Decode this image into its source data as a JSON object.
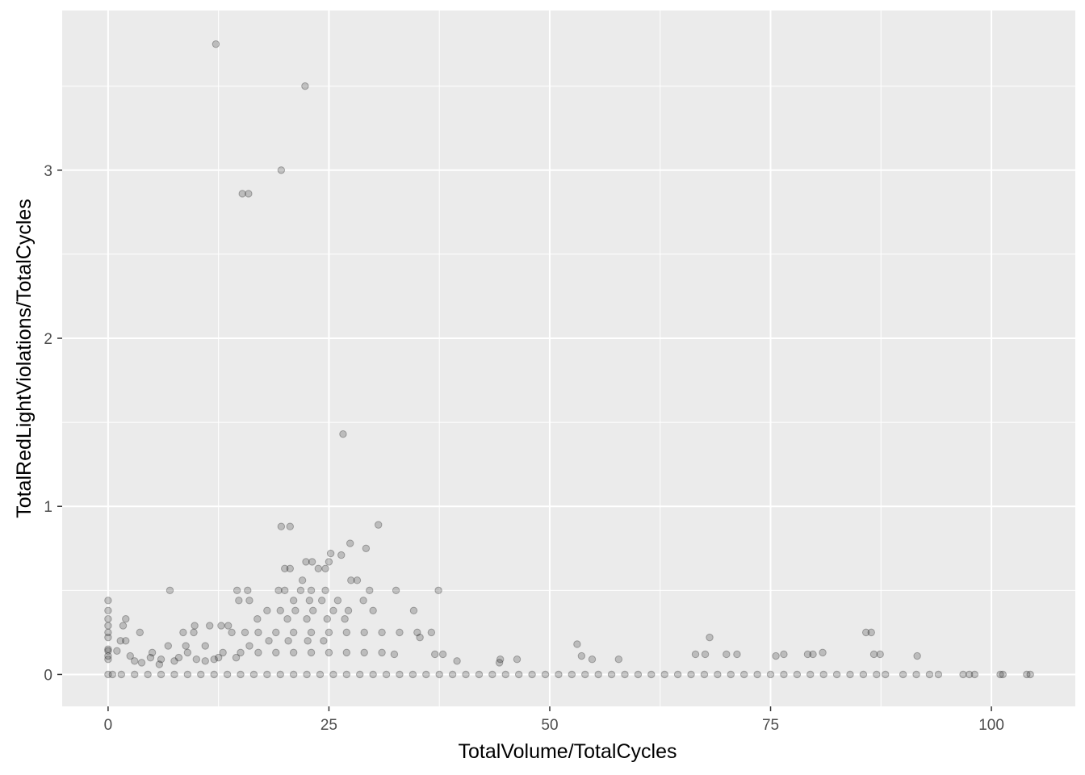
{
  "chart_data": {
    "type": "scatter",
    "xlabel": "TotalVolume/TotalCycles",
    "ylabel": "TotalRedLightViolations/TotalCycles",
    "xlim": [
      -5.2,
      109.5
    ],
    "ylim": [
      -0.19,
      3.95
    ],
    "x_ticks": [
      0,
      25,
      50,
      75,
      100
    ],
    "y_ticks": [
      0,
      1,
      2,
      3
    ],
    "x_tick_labels": [
      "0",
      "25",
      "50",
      "75",
      "100"
    ],
    "y_tick_labels": [
      "0",
      "1",
      "2",
      "3"
    ],
    "grid": true,
    "background": "#ebebeb",
    "grid_color": "#ffffff",
    "point_color": "#000000",
    "point_alpha": 0.2,
    "points": [
      [
        12.2,
        3.75
      ],
      [
        22.3,
        3.5
      ],
      [
        19.6,
        3.0
      ],
      [
        15.2,
        2.86
      ],
      [
        15.9,
        2.86
      ],
      [
        26.6,
        1.43
      ],
      [
        30.6,
        0.89
      ],
      [
        19.6,
        0.88
      ],
      [
        20.6,
        0.88
      ],
      [
        27.4,
        0.78
      ],
      [
        26.4,
        0.71
      ],
      [
        25.2,
        0.72
      ],
      [
        29.2,
        0.75
      ],
      [
        22.4,
        0.67
      ],
      [
        23.1,
        0.67
      ],
      [
        25.0,
        0.67
      ],
      [
        20.0,
        0.63
      ],
      [
        20.6,
        0.63
      ],
      [
        23.8,
        0.63
      ],
      [
        24.6,
        0.63
      ],
      [
        22.0,
        0.56
      ],
      [
        27.5,
        0.56
      ],
      [
        28.2,
        0.56
      ],
      [
        14.6,
        0.5
      ],
      [
        15.8,
        0.5
      ],
      [
        19.3,
        0.5
      ],
      [
        20.0,
        0.5
      ],
      [
        21.8,
        0.5
      ],
      [
        23.0,
        0.5
      ],
      [
        24.6,
        0.5
      ],
      [
        29.6,
        0.5
      ],
      [
        32.6,
        0.5
      ],
      [
        37.4,
        0.5
      ],
      [
        7.0,
        0.5
      ],
      [
        0.0,
        0.44
      ],
      [
        14.8,
        0.44
      ],
      [
        16.0,
        0.44
      ],
      [
        21.0,
        0.44
      ],
      [
        22.8,
        0.44
      ],
      [
        24.2,
        0.44
      ],
      [
        26.0,
        0.44
      ],
      [
        28.9,
        0.44
      ],
      [
        18.0,
        0.38
      ],
      [
        19.5,
        0.38
      ],
      [
        21.2,
        0.38
      ],
      [
        23.2,
        0.38
      ],
      [
        25.5,
        0.38
      ],
      [
        27.2,
        0.38
      ],
      [
        30.0,
        0.38
      ],
      [
        34.6,
        0.38
      ],
      [
        0.0,
        0.38
      ],
      [
        0.0,
        0.33
      ],
      [
        2.0,
        0.33
      ],
      [
        16.9,
        0.33
      ],
      [
        20.3,
        0.33
      ],
      [
        22.5,
        0.33
      ],
      [
        24.8,
        0.33
      ],
      [
        26.8,
        0.33
      ],
      [
        0.0,
        0.29
      ],
      [
        1.7,
        0.29
      ],
      [
        9.8,
        0.29
      ],
      [
        11.5,
        0.29
      ],
      [
        12.8,
        0.29
      ],
      [
        13.6,
        0.29
      ],
      [
        0.0,
        0.25
      ],
      [
        3.6,
        0.25
      ],
      [
        8.5,
        0.25
      ],
      [
        9.7,
        0.25
      ],
      [
        14.0,
        0.25
      ],
      [
        15.5,
        0.25
      ],
      [
        17.0,
        0.25
      ],
      [
        19.0,
        0.25
      ],
      [
        21.0,
        0.25
      ],
      [
        23.0,
        0.25
      ],
      [
        25.0,
        0.25
      ],
      [
        27.0,
        0.25
      ],
      [
        29.0,
        0.25
      ],
      [
        31.0,
        0.25
      ],
      [
        33.0,
        0.25
      ],
      [
        35.0,
        0.25
      ],
      [
        36.6,
        0.25
      ],
      [
        85.8,
        0.25
      ],
      [
        86.4,
        0.25
      ],
      [
        0.0,
        0.22
      ],
      [
        35.3,
        0.22
      ],
      [
        68.1,
        0.22
      ],
      [
        1.4,
        0.2
      ],
      [
        2.0,
        0.2
      ],
      [
        18.2,
        0.2
      ],
      [
        20.4,
        0.2
      ],
      [
        22.6,
        0.2
      ],
      [
        24.4,
        0.2
      ],
      [
        53.1,
        0.18
      ],
      [
        6.8,
        0.17
      ],
      [
        8.8,
        0.17
      ],
      [
        11.0,
        0.17
      ],
      [
        16.0,
        0.17
      ],
      [
        0.0,
        0.15
      ],
      [
        0.0,
        0.14
      ],
      [
        1.0,
        0.14
      ],
      [
        5.0,
        0.13
      ],
      [
        9.0,
        0.13
      ],
      [
        13.0,
        0.13
      ],
      [
        15.0,
        0.13
      ],
      [
        17.0,
        0.13
      ],
      [
        19.0,
        0.13
      ],
      [
        21.0,
        0.13
      ],
      [
        23.0,
        0.13
      ],
      [
        25.0,
        0.13
      ],
      [
        27.0,
        0.13
      ],
      [
        29.0,
        0.13
      ],
      [
        31.0,
        0.13
      ],
      [
        32.4,
        0.12
      ],
      [
        37.0,
        0.12
      ],
      [
        37.9,
        0.12
      ],
      [
        66.5,
        0.12
      ],
      [
        67.6,
        0.12
      ],
      [
        70.0,
        0.12
      ],
      [
        71.2,
        0.12
      ],
      [
        75.6,
        0.11
      ],
      [
        76.5,
        0.12
      ],
      [
        79.2,
        0.12
      ],
      [
        79.8,
        0.12
      ],
      [
        80.9,
        0.13
      ],
      [
        86.7,
        0.12
      ],
      [
        87.4,
        0.12
      ],
      [
        91.6,
        0.11
      ],
      [
        0.0,
        0.11
      ],
      [
        2.5,
        0.11
      ],
      [
        4.8,
        0.1
      ],
      [
        8.0,
        0.1
      ],
      [
        12.5,
        0.1
      ],
      [
        14.5,
        0.1
      ],
      [
        53.6,
        0.11
      ],
      [
        0.0,
        0.09
      ],
      [
        6.0,
        0.09
      ],
      [
        10.0,
        0.09
      ],
      [
        12.0,
        0.09
      ],
      [
        44.4,
        0.09
      ],
      [
        46.3,
        0.09
      ],
      [
        54.8,
        0.09
      ],
      [
        57.8,
        0.09
      ],
      [
        3.0,
        0.08
      ],
      [
        7.5,
        0.08
      ],
      [
        11.0,
        0.08
      ],
      [
        39.5,
        0.08
      ],
      [
        44.3,
        0.07
      ],
      [
        3.8,
        0.07
      ],
      [
        5.8,
        0.06
      ],
      [
        0.0,
        0.0
      ],
      [
        0.5,
        0.0
      ],
      [
        1.5,
        0.0
      ],
      [
        3.0,
        0.0
      ],
      [
        4.5,
        0.0
      ],
      [
        6.0,
        0.0
      ],
      [
        7.5,
        0.0
      ],
      [
        9.0,
        0.0
      ],
      [
        10.5,
        0.0
      ],
      [
        12.0,
        0.0
      ],
      [
        13.5,
        0.0
      ],
      [
        15.0,
        0.0
      ],
      [
        16.5,
        0.0
      ],
      [
        18.0,
        0.0
      ],
      [
        19.5,
        0.0
      ],
      [
        21.0,
        0.0
      ],
      [
        22.5,
        0.0
      ],
      [
        24.0,
        0.0
      ],
      [
        25.5,
        0.0
      ],
      [
        27.0,
        0.0
      ],
      [
        28.5,
        0.0
      ],
      [
        30.0,
        0.0
      ],
      [
        31.5,
        0.0
      ],
      [
        33.0,
        0.0
      ],
      [
        34.5,
        0.0
      ],
      [
        36.0,
        0.0
      ],
      [
        37.5,
        0.0
      ],
      [
        39.0,
        0.0
      ],
      [
        40.5,
        0.0
      ],
      [
        42.0,
        0.0
      ],
      [
        43.5,
        0.0
      ],
      [
        45.0,
        0.0
      ],
      [
        46.5,
        0.0
      ],
      [
        48.0,
        0.0
      ],
      [
        49.5,
        0.0
      ],
      [
        51.0,
        0.0
      ],
      [
        52.5,
        0.0
      ],
      [
        54.0,
        0.0
      ],
      [
        55.5,
        0.0
      ],
      [
        57.0,
        0.0
      ],
      [
        58.5,
        0.0
      ],
      [
        60.0,
        0.0
      ],
      [
        61.5,
        0.0
      ],
      [
        63.0,
        0.0
      ],
      [
        64.5,
        0.0
      ],
      [
        66.0,
        0.0
      ],
      [
        67.5,
        0.0
      ],
      [
        69.0,
        0.0
      ],
      [
        70.5,
        0.0
      ],
      [
        72.0,
        0.0
      ],
      [
        73.5,
        0.0
      ],
      [
        75.0,
        0.0
      ],
      [
        76.5,
        0.0
      ],
      [
        78.0,
        0.0
      ],
      [
        79.5,
        0.0
      ],
      [
        81.0,
        0.0
      ],
      [
        82.5,
        0.0
      ],
      [
        84.0,
        0.0
      ],
      [
        85.5,
        0.0
      ],
      [
        87.0,
        0.0
      ],
      [
        88.0,
        0.0
      ],
      [
        90.0,
        0.0
      ],
      [
        91.5,
        0.0
      ],
      [
        93.0,
        0.0
      ],
      [
        94.0,
        0.0
      ],
      [
        96.8,
        0.0
      ],
      [
        97.5,
        0.0
      ],
      [
        98.1,
        0.0
      ],
      [
        101.0,
        0.0
      ],
      [
        101.3,
        0.0
      ],
      [
        104.0,
        0.0
      ],
      [
        104.4,
        0.0
      ]
    ]
  }
}
